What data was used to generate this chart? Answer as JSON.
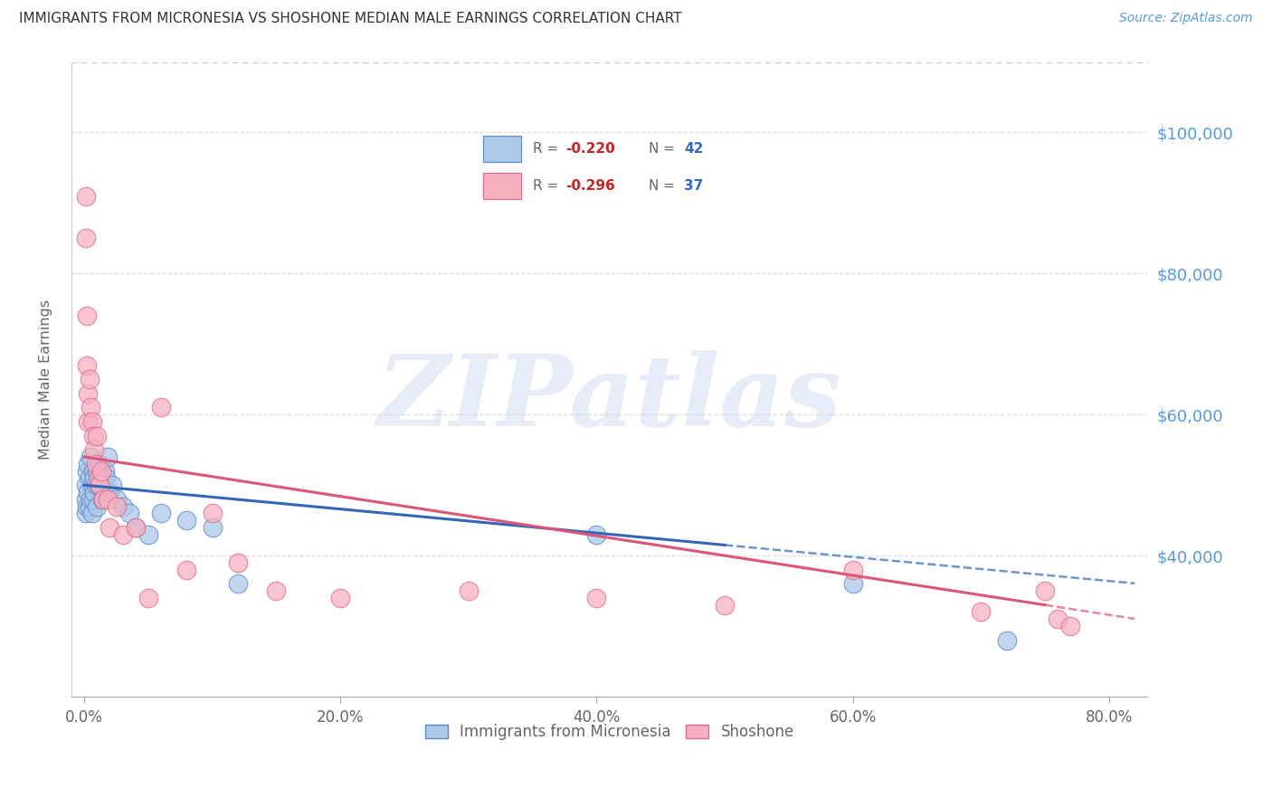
{
  "title": "IMMIGRANTS FROM MICRONESIA VS SHOSHONE MEDIAN MALE EARNINGS CORRELATION CHART",
  "source": "Source: ZipAtlas.com",
  "ylabel": "Median Male Earnings",
  "xlabel_ticks": [
    "0.0%",
    "20.0%",
    "40.0%",
    "60.0%",
    "80.0%"
  ],
  "xlabel_vals": [
    0.0,
    0.2,
    0.4,
    0.6,
    0.8
  ],
  "ytick_labels": [
    "$40,000",
    "$60,000",
    "$80,000",
    "$100,000"
  ],
  "ytick_vals": [
    40000,
    60000,
    80000,
    100000
  ],
  "xlim": [
    -0.01,
    0.83
  ],
  "ylim": [
    20000,
    110000
  ],
  "blue_label": "Immigrants from Micronesia",
  "pink_label": "Shoshone",
  "watermark": "ZIPatlas",
  "blue_color": "#adc8e8",
  "blue_edge": "#5588cc",
  "pink_color": "#f5b0c0",
  "pink_edge": "#e06888",
  "line_blue": "#3366bb",
  "line_pink": "#dd5577",
  "title_color": "#333333",
  "axis_label_color": "#666666",
  "ytick_color": "#5599ee",
  "grid_color": "#dddddd",
  "blue_scatter_x": [
    0.001,
    0.001,
    0.001,
    0.002,
    0.002,
    0.003,
    0.003,
    0.004,
    0.004,
    0.005,
    0.005,
    0.006,
    0.006,
    0.007,
    0.007,
    0.008,
    0.008,
    0.009,
    0.01,
    0.01,
    0.011,
    0.012,
    0.013,
    0.014,
    0.015,
    0.016,
    0.017,
    0.018,
    0.02,
    0.022,
    0.025,
    0.03,
    0.035,
    0.04,
    0.05,
    0.06,
    0.08,
    0.1,
    0.12,
    0.4,
    0.6,
    0.72
  ],
  "blue_scatter_y": [
    50000,
    48000,
    46000,
    52000,
    47000,
    53000,
    49000,
    51000,
    47000,
    54000,
    48000,
    50000,
    46000,
    52000,
    48000,
    51000,
    49000,
    50000,
    52000,
    47000,
    50000,
    53000,
    51000,
    48000,
    50000,
    52000,
    51000,
    54000,
    49000,
    50000,
    48000,
    47000,
    46000,
    44000,
    43000,
    46000,
    45000,
    44000,
    36000,
    43000,
    36000,
    28000
  ],
  "pink_scatter_x": [
    0.001,
    0.001,
    0.002,
    0.002,
    0.003,
    0.003,
    0.004,
    0.005,
    0.006,
    0.007,
    0.008,
    0.009,
    0.01,
    0.011,
    0.012,
    0.013,
    0.015,
    0.018,
    0.02,
    0.025,
    0.03,
    0.04,
    0.05,
    0.06,
    0.08,
    0.1,
    0.12,
    0.15,
    0.2,
    0.3,
    0.4,
    0.5,
    0.6,
    0.7,
    0.75,
    0.76,
    0.77
  ],
  "pink_scatter_y": [
    91000,
    85000,
    74000,
    67000,
    63000,
    59000,
    65000,
    61000,
    59000,
    57000,
    55000,
    53000,
    57000,
    51000,
    50000,
    52000,
    48000,
    48000,
    44000,
    47000,
    43000,
    44000,
    34000,
    61000,
    38000,
    46000,
    39000,
    35000,
    34000,
    35000,
    34000,
    33000,
    38000,
    32000,
    35000,
    31000,
    30000
  ]
}
